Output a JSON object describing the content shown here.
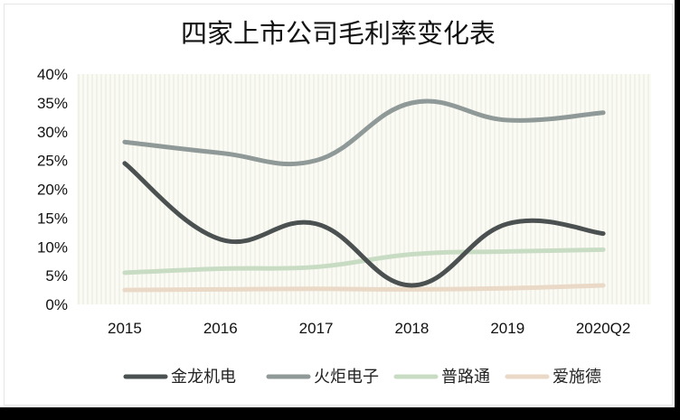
{
  "chart_data": {
    "type": "line",
    "title": "四家上市公司毛利率变化表",
    "categories": [
      "2015",
      "2016",
      "2017",
      "2018",
      "2019",
      "2020Q2"
    ],
    "y_ticks": [
      "0%",
      "5%",
      "10%",
      "15%",
      "20%",
      "25%",
      "30%",
      "35%",
      "40%"
    ],
    "ylim": [
      0,
      40
    ],
    "y_unit": "%",
    "grid": "vertical striped background",
    "legend_position": "bottom",
    "smooth": true,
    "series": [
      {
        "name": "金龙机电",
        "color": "#4b5050",
        "values": [
          24.5,
          11.3,
          14.0,
          3.3,
          14.0,
          12.3
        ]
      },
      {
        "name": "火炬电子",
        "color": "#8f9997",
        "values": [
          28.2,
          26.3,
          25.0,
          35.0,
          32.0,
          33.3
        ]
      },
      {
        "name": "普路通",
        "color": "#c8dcc4",
        "values": [
          5.5,
          6.2,
          6.5,
          8.7,
          9.2,
          9.5
        ]
      },
      {
        "name": "爱施德",
        "color": "#ead9c6",
        "values": [
          2.5,
          2.6,
          2.7,
          2.6,
          2.8,
          3.3
        ]
      }
    ]
  }
}
